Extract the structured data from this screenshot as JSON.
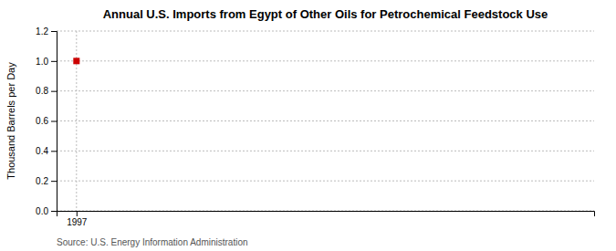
{
  "chart_data": {
    "type": "scatter",
    "title": "Annual U.S. Imports from Egypt of Other Oils for Petrochemical Feedstock Use",
    "y_label": "Thousand Barrels per Day",
    "source": "Source: U.S. Energy Information Administration",
    "x": [
      1997
    ],
    "values": [
      1.0
    ],
    "color": "#cc0000",
    "marker": "square",
    "xlim": [
      1996.5,
      2010
    ],
    "ylim": [
      0.0,
      1.2
    ],
    "xticks": [
      1997
    ],
    "yticks": [
      {
        "value": 0.0,
        "label": "0.0"
      },
      {
        "value": 0.2,
        "label": "0.2"
      },
      {
        "value": 0.4,
        "label": "0.4"
      },
      {
        "value": 0.6,
        "label": "0.6"
      },
      {
        "value": 0.8,
        "label": "0.8"
      },
      {
        "value": 1.0,
        "label": "1.0"
      },
      {
        "value": 1.2,
        "label": "1.2"
      }
    ],
    "grid": true
  }
}
